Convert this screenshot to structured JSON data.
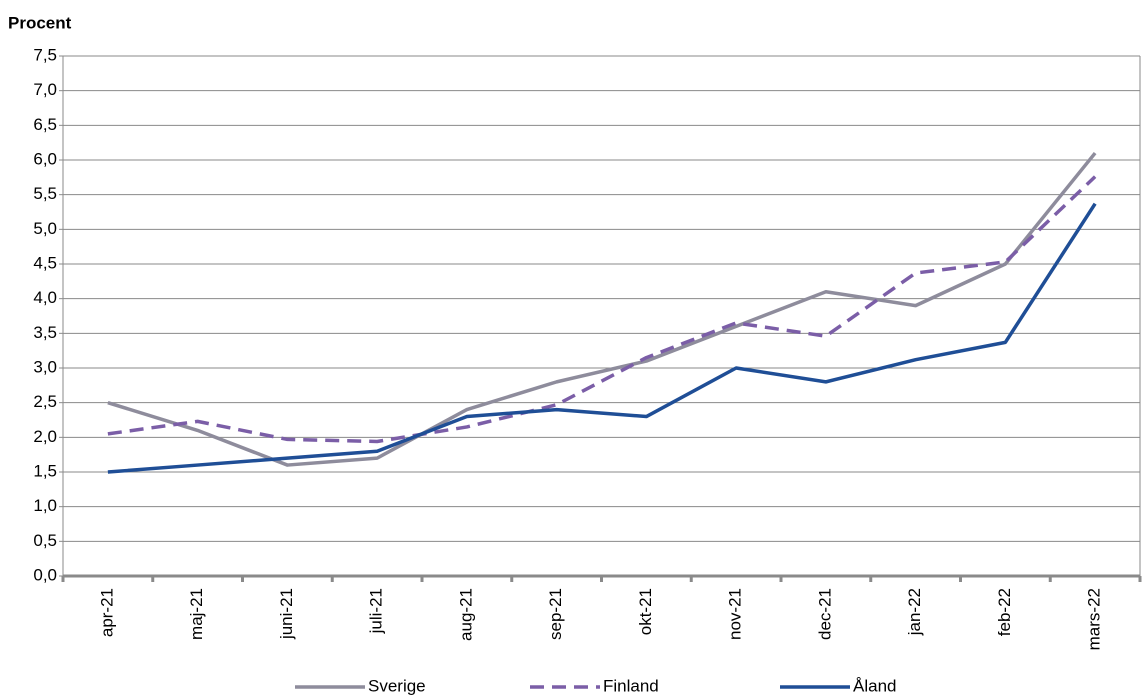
{
  "chart_data": {
    "type": "line",
    "y_label": "Procent",
    "categories": [
      "apr-21",
      "maj-21",
      "juni-21",
      "juli-21",
      "aug-21",
      "sep-21",
      "okt-21",
      "nov-21",
      "dec-21",
      "jan-22",
      "feb-22",
      "mars-22"
    ],
    "series": [
      {
        "name": "Sverige",
        "color": "#8e8c9c",
        "line_style": "solid",
        "values": [
          2.5,
          2.1,
          1.6,
          1.7,
          2.4,
          2.8,
          3.1,
          3.6,
          4.1,
          3.9,
          4.5,
          6.1
        ]
      },
      {
        "name": "Finland",
        "color": "#7b5ea7",
        "line_style": "dashed",
        "values": [
          2.05,
          2.23,
          1.97,
          1.94,
          2.15,
          2.47,
          3.15,
          3.65,
          3.46,
          4.37,
          4.53,
          5.76
        ]
      },
      {
        "name": "Åland",
        "color": "#1f4e96",
        "line_style": "solid",
        "values": [
          1.5,
          1.6,
          1.7,
          1.8,
          2.3,
          2.4,
          2.3,
          3.0,
          2.8,
          3.12,
          3.37,
          5.37
        ]
      }
    ],
    "ylim": [
      0,
      7.5
    ],
    "yticks": [
      {
        "value": 0,
        "label": "0,0"
      },
      {
        "value": 0.5,
        "label": "0,5"
      },
      {
        "value": 1,
        "label": "1,0"
      },
      {
        "value": 1.5,
        "label": "1,5"
      },
      {
        "value": 2,
        "label": "2,0"
      },
      {
        "value": 2.5,
        "label": "2,5"
      },
      {
        "value": 3,
        "label": "3,0"
      },
      {
        "value": 3.5,
        "label": "3,5"
      },
      {
        "value": 4,
        "label": "4,0"
      },
      {
        "value": 4.5,
        "label": "4,5"
      },
      {
        "value": 5,
        "label": "5,0"
      },
      {
        "value": 5.5,
        "label": "5,5"
      },
      {
        "value": 6,
        "label": "6,0"
      },
      {
        "value": 6.5,
        "label": "6,5"
      },
      {
        "value": 7,
        "label": "7,0"
      },
      {
        "value": 7.5,
        "label": "7,5"
      }
    ],
    "grid": true,
    "legend": "bottom"
  }
}
